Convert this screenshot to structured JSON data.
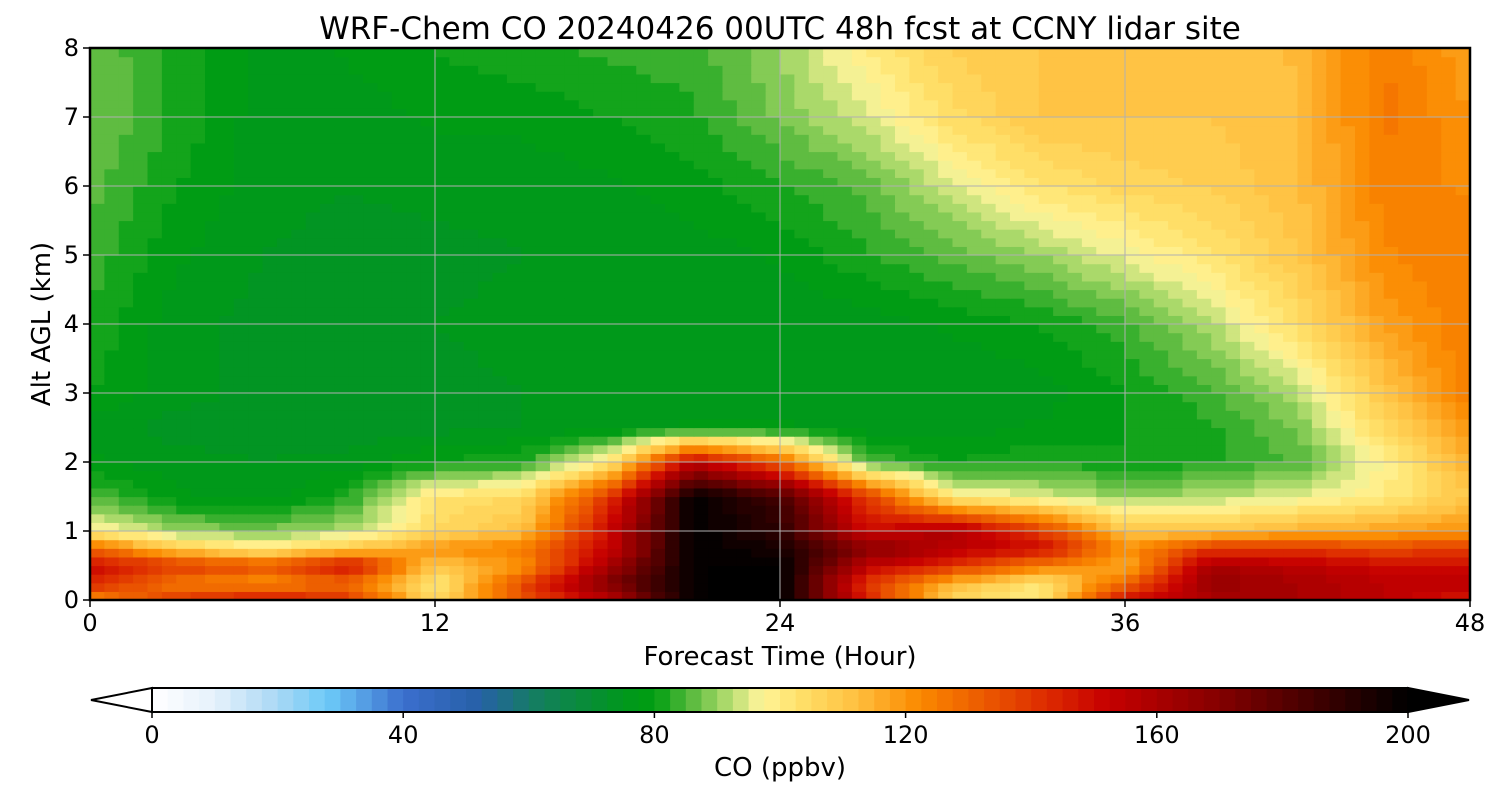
{
  "chart_data": {
    "type": "heatmap",
    "title": "WRF-Chem CO  20240426 00UTC 48h fcst at CCNY lidar site",
    "xlabel": "Forecast Time (Hour)",
    "ylabel": "Alt AGL (km)",
    "xlim": [
      0,
      48
    ],
    "ylim": [
      0,
      8
    ],
    "x_ticks": [
      0,
      12,
      24,
      36,
      48
    ],
    "y_ticks": [
      0,
      1,
      2,
      3,
      4,
      5,
      6,
      7,
      8
    ],
    "grid": true,
    "x_grid": [
      0,
      3,
      6,
      9,
      12,
      15,
      18,
      21,
      24,
      27,
      30,
      33,
      36,
      39,
      42,
      45,
      48
    ],
    "y_grid": [
      0,
      0.25,
      0.5,
      0.75,
      1,
      1.5,
      2,
      2.5,
      3,
      4,
      5,
      6,
      7,
      8
    ],
    "z": [
      [
        120,
        140,
        150,
        140,
        105,
        135,
        155,
        200,
        200,
        145,
        105,
        100,
        150,
        160,
        160,
        155,
        145
      ],
      [
        145,
        125,
        120,
        130,
        100,
        135,
        170,
        200,
        200,
        140,
        115,
        100,
        130,
        165,
        160,
        155,
        155
      ],
      [
        150,
        140,
        135,
        150,
        110,
        120,
        160,
        200,
        200,
        155,
        140,
        125,
        115,
        160,
        155,
        150,
        150
      ],
      [
        130,
        110,
        100,
        110,
        120,
        125,
        150,
        200,
        195,
        170,
        155,
        150,
        120,
        140,
        140,
        135,
        140
      ],
      [
        100,
        90,
        88,
        92,
        105,
        112,
        150,
        200,
        190,
        150,
        160,
        140,
        110,
        110,
        115,
        118,
        120
      ],
      [
        85,
        78,
        76,
        82,
        102,
        105,
        140,
        200,
        185,
        140,
        100,
        95,
        90,
        92,
        95,
        100,
        110
      ],
      [
        78,
        76,
        75,
        76,
        80,
        82,
        100,
        155,
        130,
        85,
        80,
        82,
        80,
        82,
        85,
        98,
        115
      ],
      [
        76,
        74,
        74,
        73,
        74,
        75,
        76,
        78,
        78,
        76,
        76,
        78,
        80,
        82,
        88,
        105,
        120
      ],
      [
        80,
        76,
        74,
        74,
        74,
        75,
        76,
        76,
        76,
        75,
        75,
        76,
        80,
        84,
        92,
        110,
        125
      ],
      [
        82,
        76,
        74,
        75,
        75,
        76,
        76,
        75,
        75,
        76,
        78,
        80,
        84,
        92,
        104,
        118,
        125
      ],
      [
        84,
        78,
        75,
        74,
        74,
        75,
        75,
        76,
        78,
        82,
        86,
        90,
        96,
        102,
        110,
        122,
        125
      ],
      [
        86,
        80,
        76,
        75,
        76,
        76,
        77,
        79,
        82,
        86,
        94,
        102,
        106,
        108,
        112,
        124,
        122
      ],
      [
        88,
        82,
        76,
        76,
        78,
        78,
        80,
        82,
        88,
        94,
        104,
        110,
        110,
        110,
        112,
        126,
        120
      ],
      [
        87,
        82,
        76,
        78,
        80,
        82,
        83,
        84,
        90,
        100,
        108,
        110,
        110,
        110,
        113,
        125,
        118
      ]
    ],
    "colorbar": {
      "label": "CO  (ppbv)",
      "range": [
        0,
        200
      ],
      "step": 2.5,
      "ticks": [
        0,
        40,
        80,
        120,
        160,
        200
      ],
      "extend": "both",
      "placement": "bottom"
    },
    "colormap": [
      [
        0,
        "#ffffff"
      ],
      [
        10,
        "#e6f1fb"
      ],
      [
        20,
        "#a9d8f5"
      ],
      [
        28,
        "#6ccaf8"
      ],
      [
        40,
        "#3b6fce"
      ],
      [
        52,
        "#2760a8"
      ],
      [
        62,
        "#12805a"
      ],
      [
        75,
        "#00971d"
      ],
      [
        80,
        "#009e11"
      ],
      [
        86,
        "#5bbb3f"
      ],
      [
        92,
        "#b5dd70"
      ],
      [
        97,
        "#fff59a"
      ],
      [
        103,
        "#ffe16a"
      ],
      [
        112,
        "#ffc040"
      ],
      [
        122,
        "#fb8a00"
      ],
      [
        130,
        "#ef6500"
      ],
      [
        143,
        "#dc2800"
      ],
      [
        152,
        "#c60000"
      ],
      [
        168,
        "#8c0000"
      ],
      [
        186,
        "#3d0000"
      ],
      [
        200,
        "#000000"
      ]
    ]
  }
}
